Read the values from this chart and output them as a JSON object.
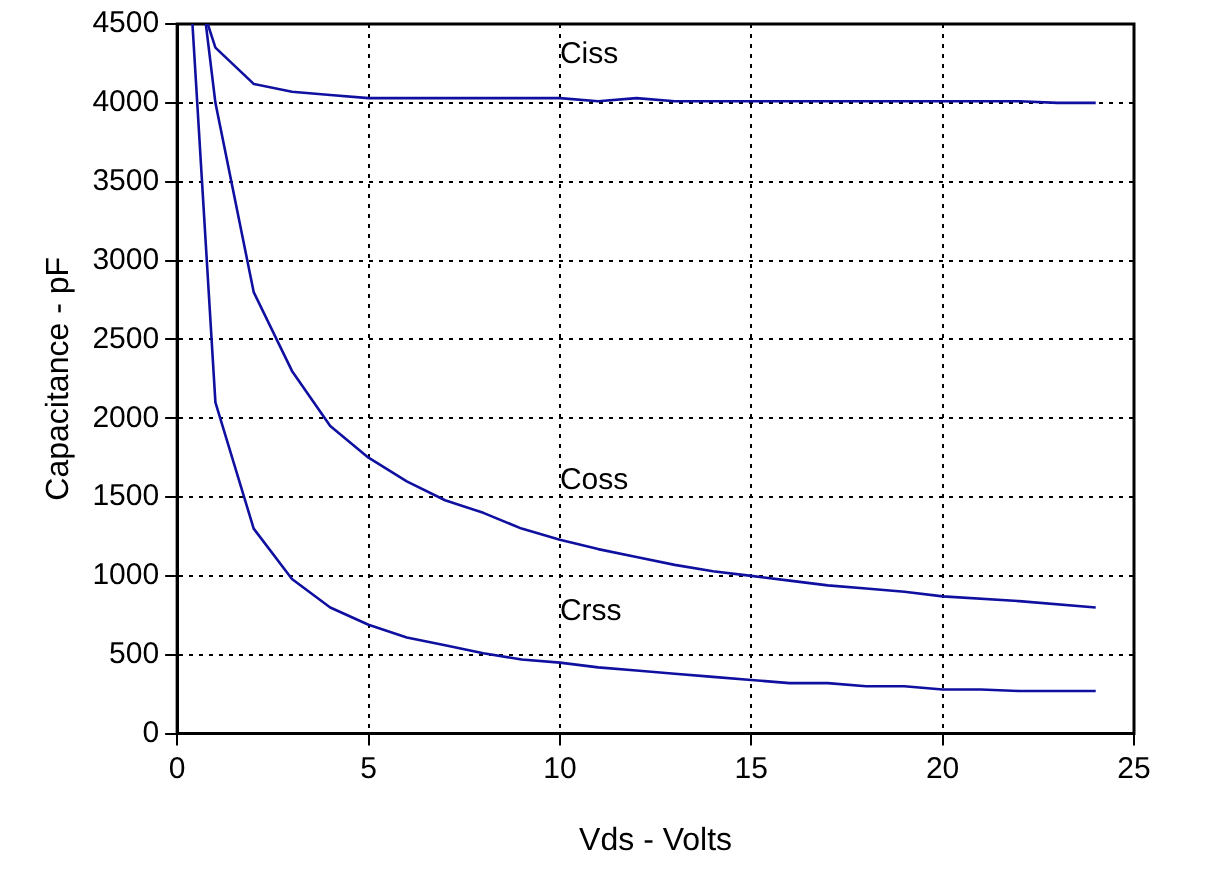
{
  "chart_data": {
    "type": "line",
    "xlabel": "Vds - Volts",
    "ylabel": "Capacitance - pF",
    "xlim": [
      0,
      25
    ],
    "xticks": [
      0,
      5,
      10,
      15,
      20,
      25
    ],
    "ylim": [
      0,
      4500
    ],
    "yticks": [
      0,
      500,
      1000,
      1500,
      2000,
      2500,
      3000,
      3500,
      4000,
      4500
    ],
    "grid": true,
    "legend": false,
    "marker": "none",
    "line_style": "solid",
    "series": [
      {
        "name": "Ciss",
        "color": "#1010a0",
        "x": [
          0.8,
          1,
          2,
          3,
          4,
          5,
          6,
          7,
          8,
          9,
          10,
          11,
          12,
          13,
          14,
          15,
          16,
          17,
          18,
          19,
          20,
          21,
          22,
          23,
          24
        ],
        "values": [
          4500,
          4350,
          4120,
          4070,
          4050,
          4030,
          4030,
          4030,
          4030,
          4030,
          4030,
          4010,
          4030,
          4010,
          4010,
          4010,
          4010,
          4010,
          4010,
          4010,
          4010,
          4010,
          4010,
          4000,
          4000
        ]
      },
      {
        "name": "Coss",
        "color": "#1010a0",
        "x": [
          0.75,
          1,
          2,
          3,
          4,
          5,
          6,
          7,
          8,
          9,
          10,
          11,
          12,
          13,
          14,
          15,
          16,
          17,
          18,
          19,
          20,
          22,
          24
        ],
        "values": [
          4500,
          4000,
          2800,
          2300,
          1950,
          1750,
          1600,
          1480,
          1400,
          1300,
          1230,
          1170,
          1120,
          1070,
          1030,
          1000,
          970,
          940,
          920,
          900,
          870,
          840,
          800
        ]
      },
      {
        "name": "Crss",
        "color": "#1010a0",
        "x": [
          0.4,
          1,
          2,
          3,
          4,
          5,
          6,
          7,
          8,
          9,
          10,
          11,
          12,
          13,
          14,
          15,
          16,
          17,
          18,
          19,
          20,
          21,
          22,
          24
        ],
        "values": [
          4500,
          2100,
          1300,
          980,
          800,
          690,
          610,
          560,
          510,
          470,
          450,
          420,
          400,
          380,
          360,
          340,
          320,
          320,
          300,
          300,
          280,
          280,
          270,
          270
        ]
      }
    ]
  }
}
